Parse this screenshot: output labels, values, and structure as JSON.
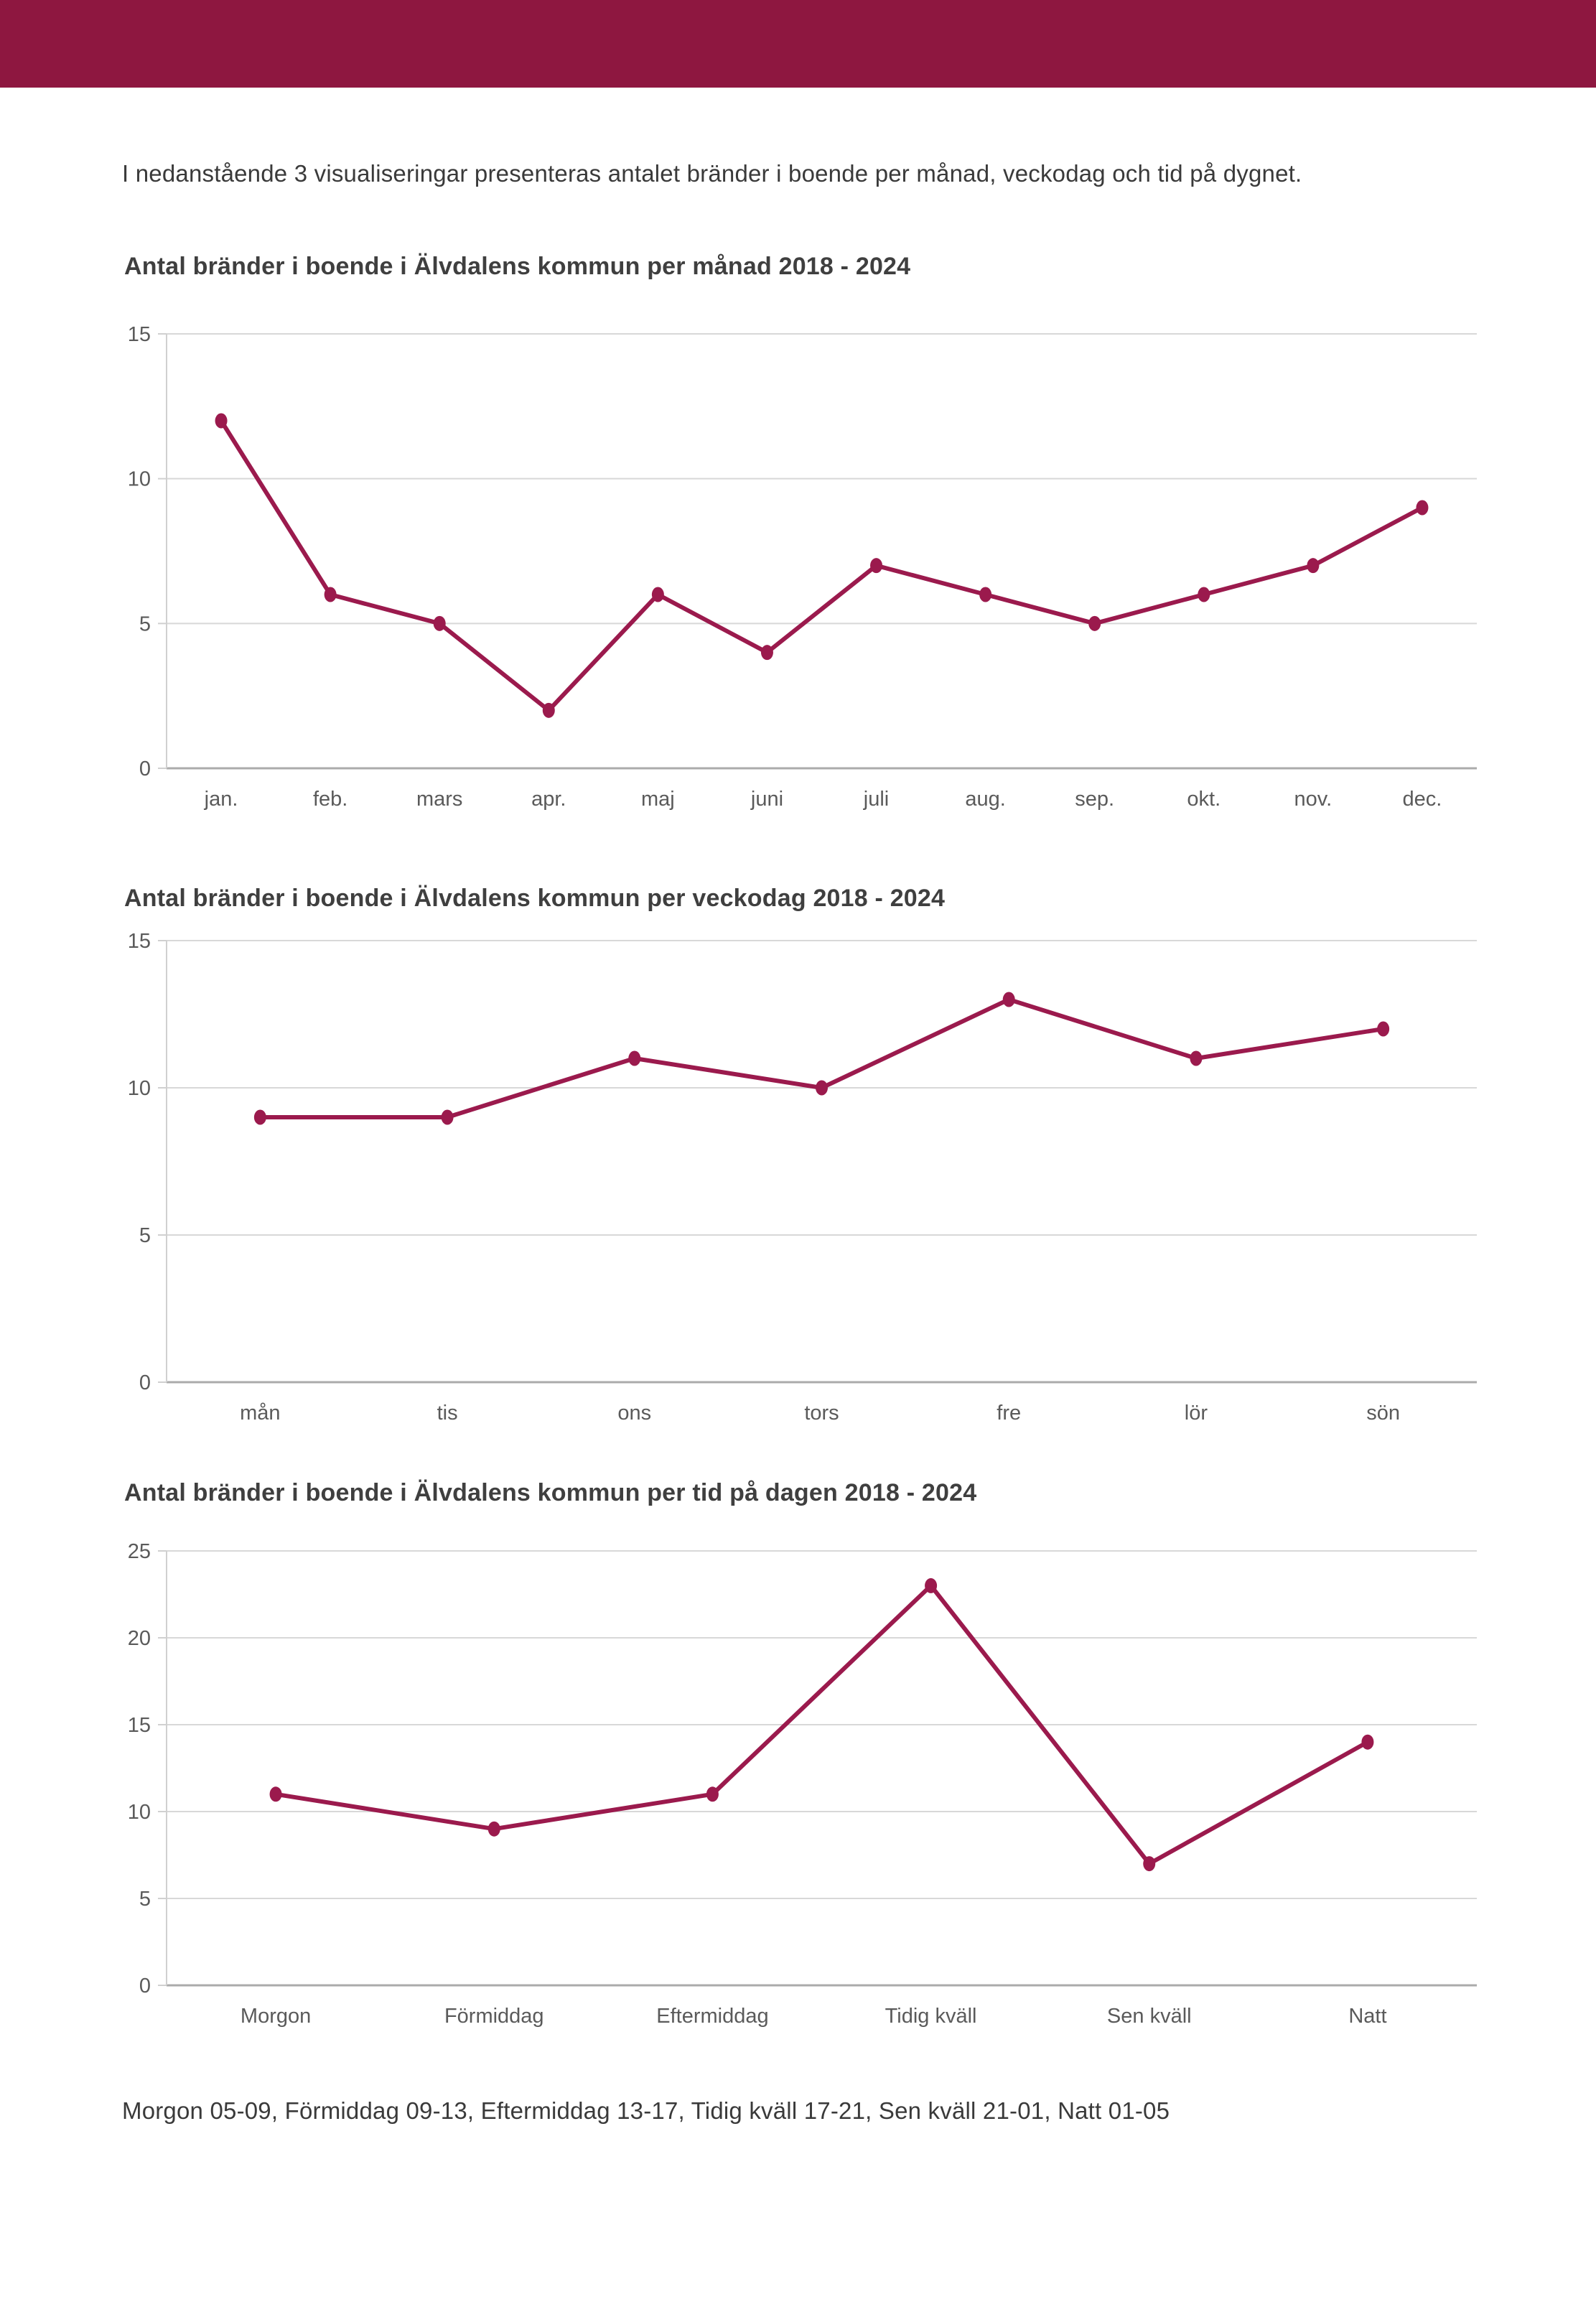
{
  "header": {
    "color": "#8e1740"
  },
  "intro": {
    "text": "I nedanstående 3 visualiseringar presenteras antalet bränder i boende per månad, veckodag och tid på dygnet."
  },
  "caption": {
    "text": "Morgon 05-09, Förmiddag 09-13, Eftermiddag 13-17, Tidig kväll 17-21, Sen kväll 21-01, Natt 01-05"
  },
  "colors": {
    "accent_line": "#9b1a4d",
    "header_bar": "#8e1740",
    "gridline": "#d8d8d8",
    "zero_axis": "#ababab",
    "axis_line": "#d0d0d0",
    "tick_label": "#5a5a5a",
    "title_text": "#3f3f3f",
    "body_text": "#3a3a3a",
    "background": "#ffffff"
  },
  "chart_data": [
    {
      "type": "line",
      "title": "Antal bränder i boende i Älvdalens kommun per månad 2018 - 2024",
      "categories": [
        "jan.",
        "feb.",
        "mars",
        "apr.",
        "maj",
        "juni",
        "juli",
        "aug.",
        "sep.",
        "okt.",
        "nov.",
        "dec."
      ],
      "values": [
        12,
        6,
        5,
        2,
        6,
        4,
        7,
        6,
        5,
        6,
        7,
        9
      ],
      "xlabel": "",
      "ylabel": "",
      "ylim": [
        0,
        15
      ],
      "yticks": [
        0,
        5,
        10,
        15
      ],
      "grid": "horizontal",
      "legend": "none"
    },
    {
      "type": "line",
      "title": "Antal bränder i boende i Älvdalens kommun per veckodag 2018 - 2024",
      "categories": [
        "mån",
        "tis",
        "ons",
        "tors",
        "fre",
        "lör",
        "sön"
      ],
      "values": [
        9,
        9,
        11,
        10,
        13,
        11,
        12
      ],
      "xlabel": "",
      "ylabel": "",
      "ylim": [
        0,
        15
      ],
      "yticks": [
        0,
        5,
        10,
        15
      ],
      "grid": "horizontal",
      "legend": "none"
    },
    {
      "type": "line",
      "title": "Antal bränder i boende i Älvdalens kommun per tid på dagen 2018 - 2024",
      "categories": [
        "Morgon",
        "Förmiddag",
        "Eftermiddag",
        "Tidig kväll",
        "Sen kväll",
        "Natt"
      ],
      "values": [
        11,
        9,
        11,
        23,
        7,
        14
      ],
      "xlabel": "",
      "ylabel": "",
      "ylim": [
        0,
        25
      ],
      "yticks": [
        0,
        5,
        10,
        15,
        20,
        25
      ],
      "grid": "horizontal",
      "legend": "none"
    }
  ]
}
